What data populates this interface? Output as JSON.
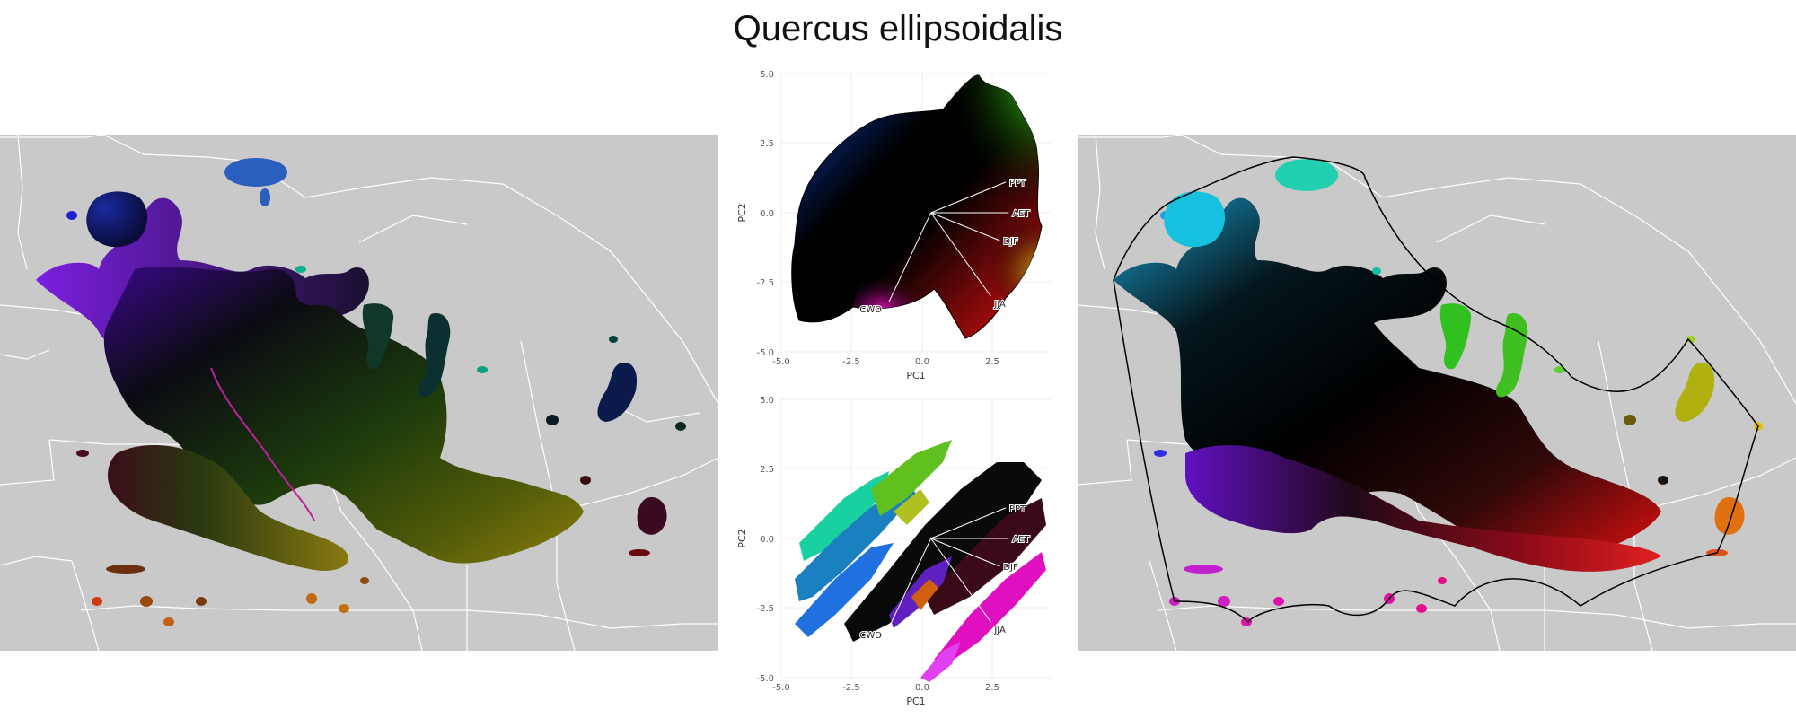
{
  "title": "Quercus ellipsoidalis",
  "chart_data": [
    {
      "type": "scatter",
      "title": "",
      "xlabel": "PC1",
      "ylabel": "PC2",
      "xlim": [
        -5.0,
        4.0
      ],
      "ylim": [
        -5.0,
        5.0
      ],
      "xticks": [
        "-5.0",
        "-2.5",
        "0.0",
        "2.5"
      ],
      "xtick_values": [
        -5.0,
        -2.5,
        0.0,
        2.5
      ],
      "yticks": [
        "5.0",
        "2.5",
        "0.0",
        "-2.5",
        "-5.0"
      ],
      "ytick_values": [
        5.0,
        2.5,
        0.0,
        -2.5,
        -5.0
      ],
      "grid": true,
      "note_colors": "points colored by position in PCA space (RGB color wheel)",
      "vectors": [
        {
          "label": "PPT",
          "x": 2.5,
          "y": 1.1
        },
        {
          "label": "AET",
          "x": 2.6,
          "y": 0.0
        },
        {
          "label": "DJF",
          "x": 2.3,
          "y": -1.0
        },
        {
          "label": "JJA",
          "x": 2.0,
          "y": -3.0
        },
        {
          "label": "CWD",
          "x": -1.4,
          "y": -3.2
        }
      ]
    },
    {
      "type": "scatter",
      "title": "",
      "xlabel": "PC1",
      "ylabel": "PC2",
      "xlim": [
        -5.0,
        4.0
      ],
      "ylim": [
        -5.0,
        5.0
      ],
      "xticks": [
        "-5.0",
        "-2.5",
        "0.0",
        "2.5"
      ],
      "xtick_values": [
        -5.0,
        -2.5,
        0.0,
        2.5
      ],
      "yticks": [
        "5.0",
        "2.5",
        "0.0",
        "-2.5",
        "-5.0"
      ],
      "ytick_values": [
        5.0,
        2.5,
        0.0,
        -2.5,
        -5.0
      ],
      "grid": true,
      "vectors": [
        {
          "label": "PPT",
          "x": 2.5,
          "y": 1.1
        },
        {
          "label": "AET",
          "x": 2.6,
          "y": 0.0
        },
        {
          "label": "DJF",
          "x": 2.3,
          "y": -1.0
        },
        {
          "label": "JJA",
          "x": 2.0,
          "y": -3.0
        },
        {
          "label": "CWD",
          "x": -1.4,
          "y": -3.2
        }
      ]
    }
  ],
  "colors": {
    "map_background": "#c9c9c9",
    "borders": "#ffffff",
    "hull_line": "#000000"
  }
}
